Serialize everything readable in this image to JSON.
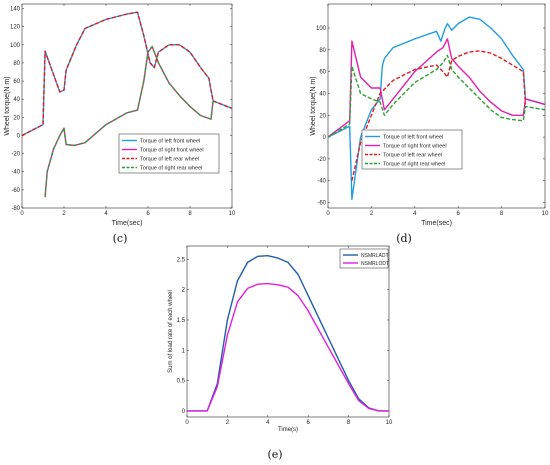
{
  "captions": [
    "(c)",
    "(d)",
    "(e)"
  ],
  "chart_data": [
    {
      "type": "line",
      "xlabel": "Time(sec)",
      "ylabel": "Wheel torque(N m)",
      "xlim": [
        0,
        10
      ],
      "ylim": [
        -80,
        145
      ],
      "xticks": [
        0,
        2,
        4,
        6,
        8,
        10
      ],
      "yticks": [
        -80,
        -60,
        -40,
        -20,
        0,
        20,
        40,
        60,
        80,
        100,
        120,
        140
      ],
      "legend_position": "center-right",
      "series": [
        {
          "name": "Torque of left front wheel",
          "color": "#1f9ee3",
          "dash": "solid",
          "x": [
            0,
            1,
            1.1,
            1.8,
            2.0,
            2.1,
            2.6,
            3,
            4,
            5,
            5.5,
            5.8,
            6.0,
            6.1,
            6.3,
            6.5,
            7,
            7.5,
            8,
            8.5,
            8.9,
            9.0,
            9.1,
            10
          ],
          "y": [
            0,
            12,
            93,
            48,
            50,
            72,
            100,
            118,
            128,
            134,
            136,
            110,
            90,
            80,
            75,
            92,
            100,
            100,
            92,
            75,
            63,
            50,
            38,
            30
          ]
        },
        {
          "name": "Torque of right front wheel",
          "color": "#e020b0",
          "dash": "solid",
          "x": [
            1.1,
            1.2,
            1.5,
            1.8,
            2.0,
            2.1,
            2.5,
            3,
            4,
            5,
            5.5,
            5.8,
            6.0,
            6.2,
            6.5,
            7,
            7.5,
            8,
            8.5,
            9.0,
            9.1
          ],
          "y": [
            -68,
            -40,
            -15,
            0,
            8,
            -10,
            -11,
            -8,
            12,
            25,
            28,
            60,
            92,
            98,
            80,
            58,
            44,
            32,
            22,
            18,
            38
          ]
        },
        {
          "name": "Torque of left rear wheel",
          "color": "#e41a1c",
          "dash": "dashed",
          "x": [
            0,
            1,
            1.1,
            1.8,
            2.0,
            2.1,
            2.6,
            3,
            4,
            5,
            5.5,
            5.8,
            6.0,
            6.1,
            6.3,
            6.5,
            7,
            7.5,
            8,
            8.5,
            8.9,
            9.0,
            9.1,
            10
          ],
          "y": [
            0,
            12,
            93,
            48,
            50,
            72,
            100,
            118,
            128,
            134,
            136,
            110,
            90,
            80,
            75,
            92,
            100,
            100,
            92,
            75,
            63,
            50,
            38,
            30
          ]
        },
        {
          "name": "Torque of right rear wheel",
          "color": "#2ca02c",
          "dash": "dashed",
          "x": [
            1.1,
            1.2,
            1.5,
            1.8,
            2.0,
            2.1,
            2.5,
            3,
            4,
            5,
            5.5,
            5.8,
            6.0,
            6.2,
            6.5,
            7,
            7.5,
            8,
            8.5,
            9.0,
            9.1
          ],
          "y": [
            -68,
            -40,
            -15,
            0,
            8,
            -10,
            -11,
            -8,
            12,
            25,
            28,
            60,
            92,
            98,
            80,
            58,
            44,
            32,
            22,
            18,
            38
          ]
        }
      ]
    },
    {
      "type": "line",
      "xlabel": "Time(sec)",
      "ylabel": "Wheel torque(N m)",
      "xlim": [
        0,
        10
      ],
      "ylim": [
        -65,
        122
      ],
      "xticks": [
        0,
        2,
        4,
        6,
        8,
        10
      ],
      "yticks": [
        -60,
        -40,
        -20,
        0,
        20,
        40,
        60,
        80,
        100
      ],
      "legend_position": "bottom-center",
      "series": [
        {
          "name": "Torque of left front wheel",
          "color": "#1f9ee3",
          "dash": "solid",
          "x": [
            0,
            1,
            1.1,
            1.5,
            2,
            2.4,
            2.5,
            2.6,
            3,
            4,
            5,
            5.2,
            5.4,
            5.5,
            5.7,
            6,
            6.5,
            7,
            7.5,
            8,
            8.5,
            9.0,
            9.1,
            10
          ],
          "y": [
            0,
            10,
            -57,
            0,
            25,
            35,
            65,
            72,
            82,
            90,
            97,
            88,
            100,
            104,
            98,
            104,
            110,
            108,
            100,
            90,
            75,
            62,
            35,
            30
          ]
        },
        {
          "name": "Torque of right front wheel",
          "color": "#e020b0",
          "dash": "solid",
          "x": [
            0,
            1,
            1.1,
            1.5,
            2,
            2.4,
            2.6,
            3,
            4,
            5,
            5.3,
            5.5,
            5.7,
            6,
            6.5,
            7,
            7.5,
            8,
            8.5,
            9.0,
            9.1,
            10
          ],
          "y": [
            0,
            15,
            88,
            55,
            45,
            45,
            25,
            35,
            60,
            78,
            82,
            90,
            72,
            65,
            55,
            42,
            32,
            24,
            20,
            20,
            35,
            30
          ]
        },
        {
          "name": "Torque of left rear wheel",
          "color": "#e41a1c",
          "dash": "dashed",
          "x": [
            1.1,
            1.5,
            2,
            2.4,
            3,
            4,
            5,
            5.3,
            5.5,
            5.7,
            6,
            6.5,
            7,
            7.5,
            8,
            8.5,
            9.0,
            9.1
          ],
          "y": [
            -40,
            -5,
            20,
            40,
            52,
            62,
            66,
            60,
            55,
            70,
            74,
            78,
            79,
            77,
            72,
            66,
            60,
            30
          ]
        },
        {
          "name": "Torque of right rear wheel",
          "color": "#2ca02c",
          "dash": "dashed",
          "x": [
            0,
            1,
            1.1,
            1.5,
            2,
            2.4,
            2.6,
            3,
            4,
            5,
            5.3,
            5.5,
            5.7,
            6,
            6.5,
            7,
            7.5,
            8,
            8.5,
            9.0,
            9.1,
            10
          ],
          "y": [
            0,
            12,
            65,
            40,
            35,
            32,
            20,
            30,
            50,
            62,
            68,
            75,
            62,
            55,
            45,
            35,
            25,
            18,
            16,
            15,
            28,
            25
          ]
        }
      ]
    },
    {
      "type": "line",
      "xlabel": "Time(s)",
      "ylabel": "Sum of load rate of each wheel",
      "xlim": [
        0,
        10
      ],
      "ylim": [
        -0.1,
        2.72
      ],
      "xticks": [
        0,
        2,
        4,
        6,
        8,
        10
      ],
      "yticks": [
        0,
        0.5,
        1,
        1.5,
        2,
        2.5
      ],
      "legend_position": "top-right",
      "series": [
        {
          "name": "NSMRLADT",
          "color": "#1f5ea8",
          "dash": "solid",
          "x": [
            0,
            1,
            1.5,
            2,
            2.5,
            3,
            3.5,
            4,
            4.5,
            5,
            5.5,
            6,
            6.5,
            7,
            7.5,
            8,
            8.5,
            9,
            9.5,
            10
          ],
          "y": [
            0,
            0,
            0.45,
            1.5,
            2.15,
            2.45,
            2.55,
            2.56,
            2.52,
            2.45,
            2.25,
            1.9,
            1.55,
            1.2,
            0.85,
            0.5,
            0.2,
            0.05,
            0,
            0
          ]
        },
        {
          "name": "NSMRLODT",
          "color": "#e020e0",
          "dash": "solid",
          "x": [
            0,
            1,
            1.5,
            2,
            2.5,
            3,
            3.5,
            4,
            4.5,
            5,
            5.5,
            6,
            6.5,
            7,
            7.5,
            8,
            8.5,
            9,
            9.5,
            10
          ],
          "y": [
            0,
            0,
            0.4,
            1.25,
            1.8,
            2.02,
            2.09,
            2.1,
            2.08,
            2.04,
            1.9,
            1.65,
            1.35,
            1.05,
            0.75,
            0.45,
            0.17,
            0.04,
            0,
            0
          ]
        }
      ]
    }
  ]
}
